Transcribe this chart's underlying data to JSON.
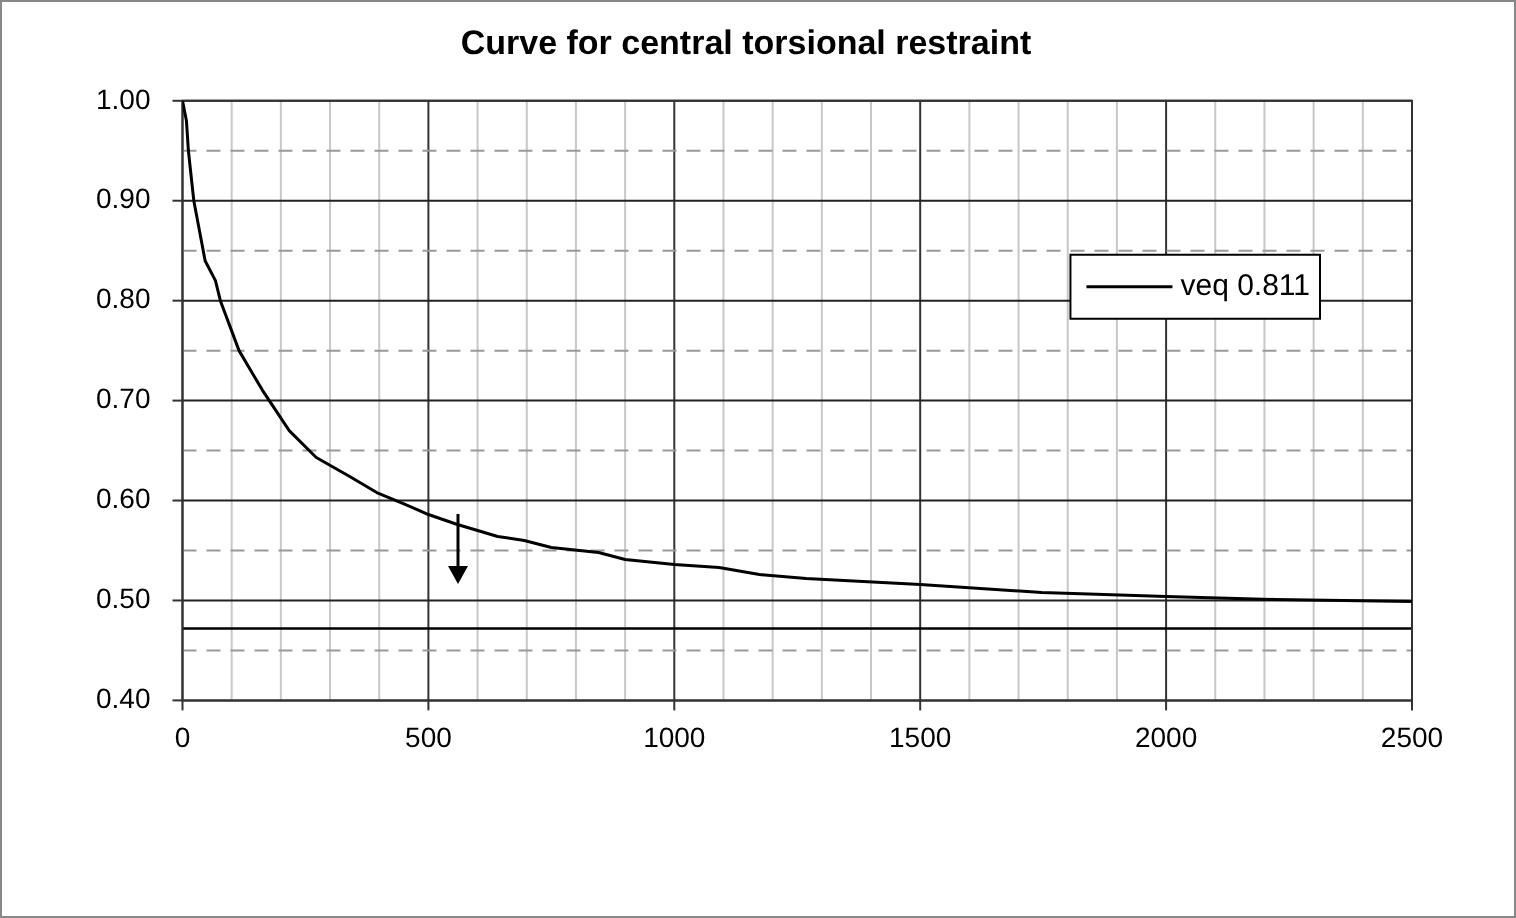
{
  "chart_data": {
    "type": "line",
    "title": "Curve for central torsional restraint",
    "series": [
      {
        "name": "veq 0.811",
        "color": "#000000",
        "x": [
          0,
          8,
          12,
          23,
          46,
          67,
          77,
          115,
          163,
          217,
          272,
          340,
          395,
          449,
          500,
          559,
          641,
          695,
          750,
          846,
          900,
          1000,
          1091,
          1173,
          1268,
          1500,
          1747,
          2000,
          2222,
          2500
        ],
        "values": [
          1.0,
          0.98,
          0.95,
          0.9,
          0.84,
          0.82,
          0.8,
          0.75,
          0.71,
          0.67,
          0.643,
          0.624,
          0.608,
          0.597,
          0.586,
          0.576,
          0.564,
          0.56,
          0.553,
          0.548,
          0.541,
          0.536,
          0.533,
          0.526,
          0.522,
          0.516,
          0.508,
          0.504,
          0.501,
          0.499
        ]
      }
    ],
    "xlim": [
      0,
      2500
    ],
    "xticks": [
      0,
      {
        "value": 100,
        "label": null
      },
      {
        "value": 200,
        "label": null
      },
      {
        "value": 300,
        "label": null
      },
      {
        "value": 400,
        "label": null
      },
      500,
      {
        "value": 600,
        "label": null
      },
      {
        "value": 700,
        "label": null
      },
      {
        "value": 800,
        "label": null
      },
      {
        "value": 900,
        "label": null
      },
      1000,
      {
        "value": 1100,
        "label": null
      },
      {
        "value": 1200,
        "label": null
      },
      {
        "value": 1300,
        "label": null
      },
      {
        "value": 1400,
        "label": null
      },
      1500,
      {
        "value": 1600,
        "label": null
      },
      {
        "value": 1700,
        "label": null
      },
      {
        "value": 1800,
        "label": null
      },
      {
        "value": 1900,
        "label": null
      },
      2000,
      {
        "value": 2100,
        "label": null
      },
      {
        "value": 2200,
        "label": null
      },
      {
        "value": 2300,
        "label": null
      },
      {
        "value": 2400,
        "label": null
      },
      2500
    ],
    "ylim": [
      0.4,
      1.0
    ],
    "yticks": [
      {
        "value": 0.4,
        "label": "0.40"
      },
      {
        "value": 0.45,
        "label": null
      },
      {
        "value": 0.5,
        "label": "0.50"
      },
      {
        "value": 0.55,
        "label": null
      },
      {
        "value": 0.6,
        "label": "0.60"
      },
      {
        "value": 0.65,
        "label": null
      },
      {
        "value": 0.7,
        "label": "0.70"
      },
      {
        "value": 0.75,
        "label": null
      },
      {
        "value": 0.8,
        "label": "0.80"
      },
      {
        "value": 0.85,
        "label": null
      },
      {
        "value": 0.9,
        "label": "0.90"
      },
      {
        "value": 0.95,
        "label": null
      },
      {
        "value": 1.0,
        "label": "1.00"
      }
    ],
    "ref_lines": [
      {
        "axis": "y",
        "value": 0.472,
        "color": "#000000"
      }
    ],
    "grid": true,
    "legend": "top right",
    "marker": "none",
    "line_style": "solid"
  }
}
